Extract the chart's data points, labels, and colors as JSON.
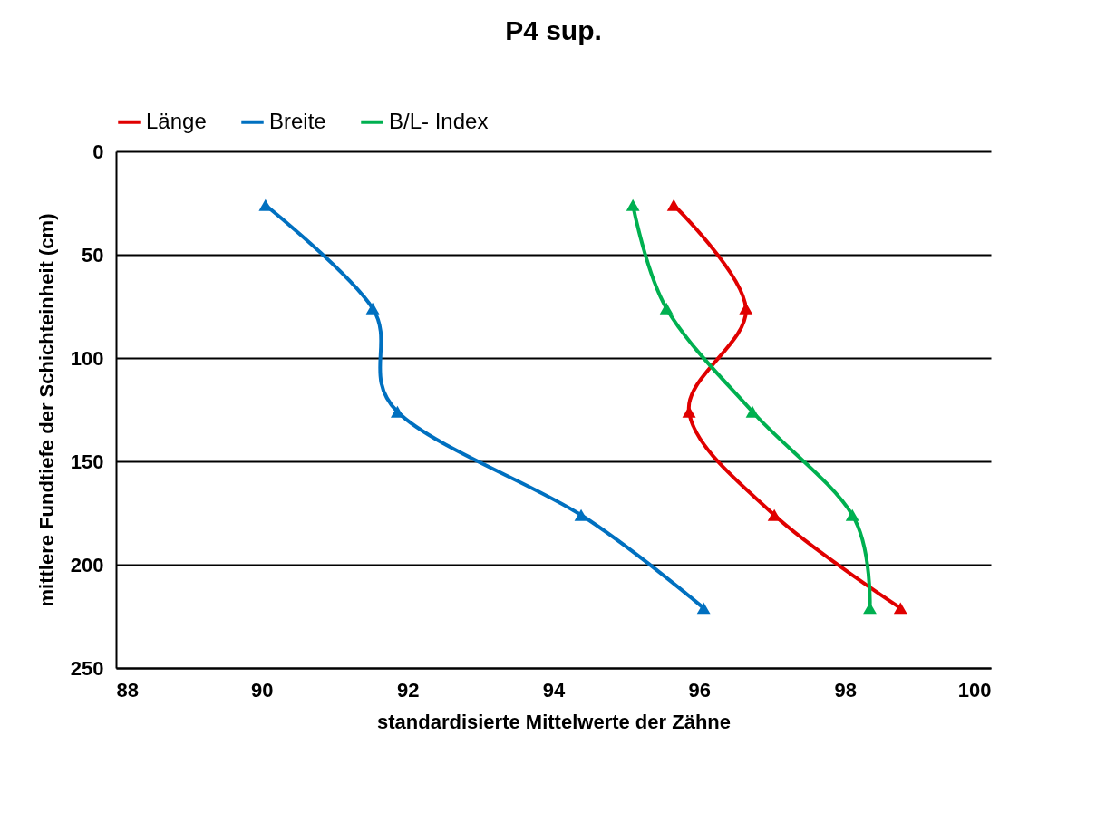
{
  "chart_data": {
    "type": "line",
    "title": "P4 sup.",
    "xlabel": "standardisierte  Mittelwerte der Zähne",
    "ylabel": "mittlere Fundtiefe der Schichteinheit (cm)",
    "series": [
      {
        "name": "Länge",
        "color": "#e00000",
        "x": [
          95.65,
          96.64,
          95.86,
          97.03,
          98.76
        ],
        "values": [
          26,
          76,
          126,
          176,
          221
        ]
      },
      {
        "name": "Breite",
        "color": "#0070c0",
        "x": [
          90.05,
          91.52,
          91.86,
          94.38,
          96.06
        ],
        "values": [
          26,
          76,
          126,
          176,
          221
        ]
      },
      {
        "name": "B/L- Index",
        "color": "#00b050",
        "x": [
          95.09,
          95.55,
          96.73,
          98.1,
          98.34
        ],
        "values": [
          26,
          76,
          126,
          176,
          221
        ]
      }
    ],
    "xlim": [
      88,
      100
    ],
    "xticks": [
      88,
      90,
      92,
      94,
      96,
      98,
      100
    ],
    "ylim": [
      250,
      0
    ],
    "yticks": [
      0,
      50,
      100,
      150,
      200,
      250
    ],
    "grid": "y",
    "legend": "top",
    "marker": "triangle",
    "line_style": "solid"
  }
}
